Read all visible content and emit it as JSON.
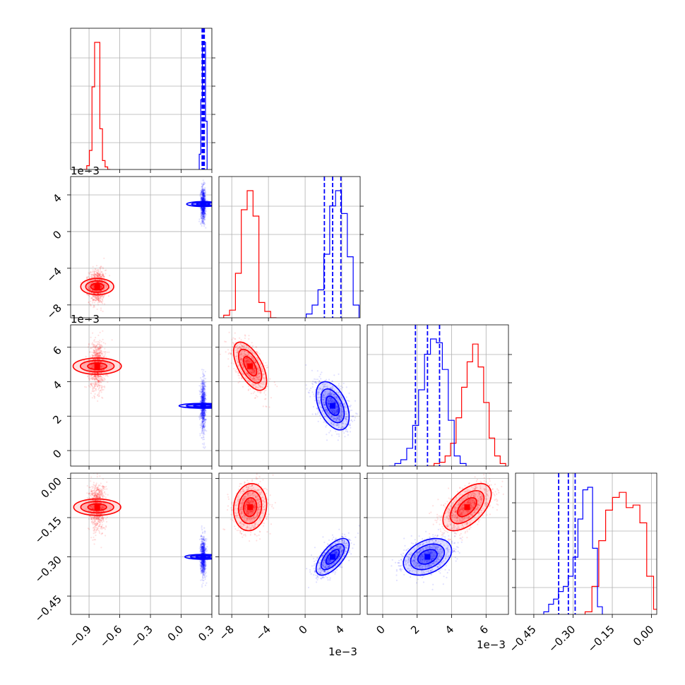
{
  "chart_data": {
    "type": "corner",
    "title": "",
    "parameters": [
      "",
      "",
      "",
      ""
    ],
    "colors": {
      "series_a": "#ff0000",
      "series_b": "#0000ff"
    },
    "grid": true,
    "axes": [
      {
        "range": [
          -1.08,
          0.3
        ],
        "ticks": [
          -0.9,
          -0.6,
          -0.3,
          0.0,
          0.3
        ],
        "tick_labels": [
          "−0.9",
          "−0.6",
          "−0.3",
          "0.0",
          "0.3"
        ],
        "offset_text": ""
      },
      {
        "range": [
          -0.0094,
          0.006
        ],
        "ticks": [
          -0.008,
          -0.004,
          0.0,
          0.004
        ],
        "tick_labels": [
          "−8",
          "−4",
          "0",
          "4"
        ],
        "offset_text": "1e−3"
      },
      {
        "range": [
          -0.0009,
          0.0073
        ],
        "ticks": [
          0.0,
          0.002,
          0.004,
          0.006
        ],
        "tick_labels": [
          "0",
          "2",
          "4",
          "6"
        ],
        "offset_text": "1e−3"
      },
      {
        "range": [
          -0.52,
          0.02
        ],
        "ticks": [
          -0.45,
          -0.3,
          -0.15,
          0.0
        ],
        "tick_labels": [
          "−0.45",
          "−0.30",
          "−0.15",
          "0.00"
        ],
        "offset_text": ""
      }
    ],
    "series": [
      {
        "name": "",
        "color": "#ff0000",
        "mean": [
          -0.82,
          -0.006,
          0.0049,
          -0.11
        ],
        "std": [
          0.04,
          0.0009,
          0.0007,
          0.045
        ],
        "histograms": [
          [
            0.0,
            0.03,
            0.15,
            0.65,
            1.0,
            1.0,
            0.32,
            0.07,
            0.02,
            0.0
          ],
          [
            0.02,
            0.06,
            0.35,
            0.85,
            1.0,
            0.8,
            0.12,
            0.05,
            0.0
          ],
          [
            0.0,
            0.02,
            0.03,
            0.08,
            0.18,
            0.38,
            0.62,
            0.82,
            0.96,
            0.78,
            0.5,
            0.22,
            0.08,
            0.02
          ],
          [
            0.02,
            0.22,
            0.58,
            0.82,
            0.92,
            0.96,
            0.84,
            0.86,
            0.72,
            0.3,
            0.04
          ]
        ]
      },
      {
        "name": "",
        "color": "#0000ff",
        "mean": [
          0.215,
          0.003,
          0.0026,
          -0.3
        ],
        "std": [
          0.012,
          0.0009,
          0.0007,
          0.035
        ],
        "quantiles": [
          [
            0.205,
            0.215,
            0.226
          ],
          [
            0.0021,
            0.003,
            0.0039
          ],
          [
            0.0019,
            0.0026,
            0.0033
          ],
          [
            -0.355,
            -0.318,
            -0.292
          ]
        ],
        "histograms": [
          [
            0.12,
            0.55,
            1.0,
            1.0,
            0.38
          ],
          [
            0.03,
            0.1,
            0.22,
            0.5,
            0.88,
            1.0,
            0.82,
            0.48,
            0.1
          ],
          [
            0.0,
            0.02,
            0.05,
            0.14,
            0.32,
            0.6,
            0.88,
            1.0,
            0.97,
            0.76,
            0.36,
            0.08,
            0.02
          ],
          [
            0.02,
            0.08,
            0.12,
            0.18,
            0.22,
            0.3,
            0.45,
            0.75,
            0.98,
            1.0,
            0.52,
            0.06
          ]
        ]
      }
    ]
  }
}
